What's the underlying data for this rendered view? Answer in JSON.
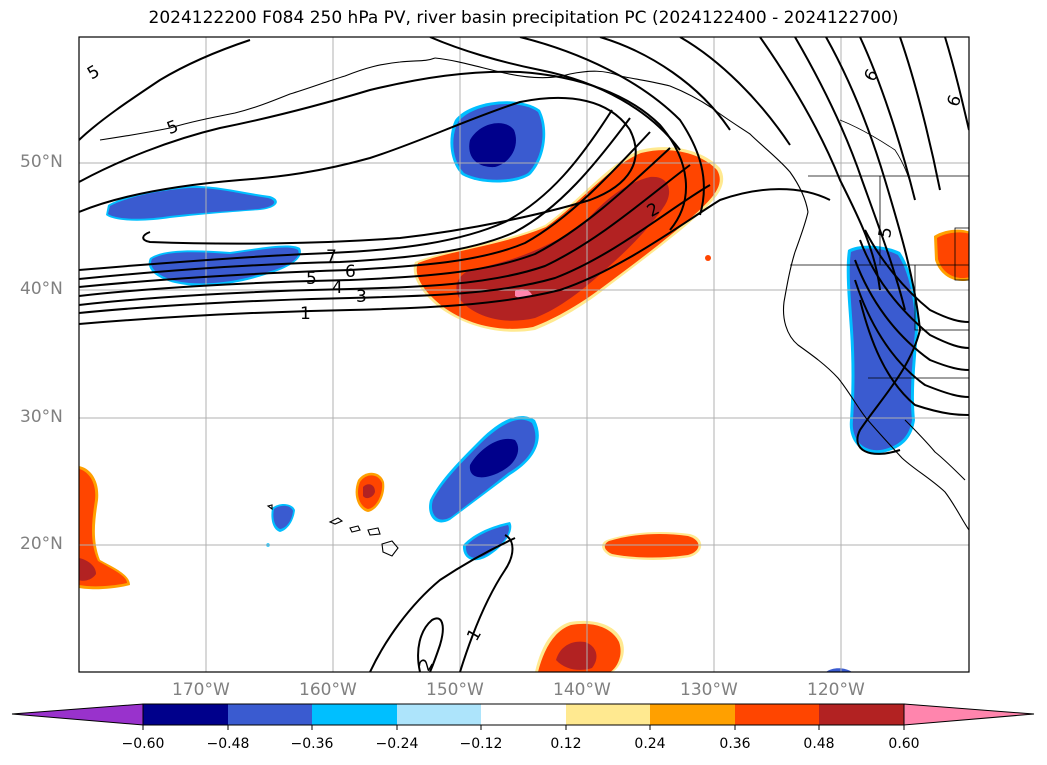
{
  "title": "2024122200 F084 250 hPa PV, river basin precipitation PC (2024122400 - 2024122700)",
  "map": {
    "projection": "PlateCarree",
    "lon_range": [
      -180,
      -110
    ],
    "lat_range": [
      10,
      60
    ],
    "gridlines": true,
    "lat_labels": [
      "50°N",
      "40°N",
      "30°N",
      "20°N"
    ],
    "lon_labels": [
      "170°W",
      "160°W",
      "150°W",
      "140°W",
      "130°W",
      "120°W"
    ],
    "contour_labels": [
      "5",
      "5",
      "7",
      "6",
      "5",
      "4",
      "3",
      "1",
      "2",
      "1",
      "2",
      "6",
      "6",
      "5"
    ]
  },
  "colorbar": {
    "ticks": [
      "−0.60",
      "−0.48",
      "−0.36",
      "−0.24",
      "−0.12",
      "0.12",
      "0.24",
      "0.36",
      "0.48",
      "0.60"
    ],
    "colors": {
      "under": "#9932cc",
      "bins": [
        "#00008b",
        "#3a5bd0",
        "#00bfff",
        "#ade4fb",
        "#ffffff",
        "#ffe990",
        "#ffa000",
        "#ff4500",
        "#b22222",
        "#ff85ad"
      ],
      "over": "#ff85ad"
    }
  }
}
